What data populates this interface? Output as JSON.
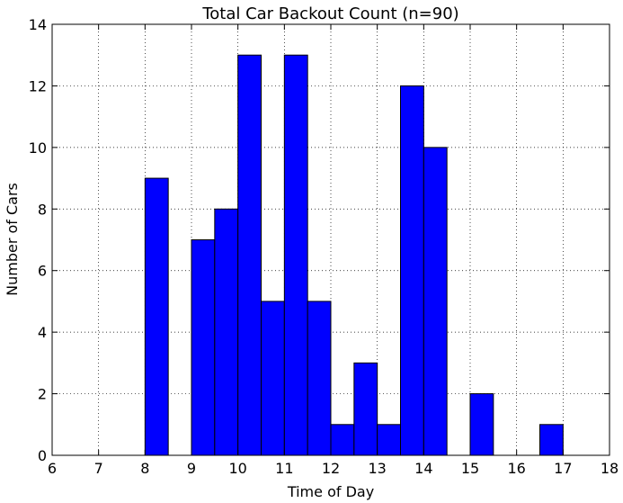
{
  "chart_data": {
    "type": "bar",
    "title": "Total Car Backout Count (n=90)",
    "xlabel": "Time of Day",
    "ylabel": "Number of Cars",
    "xlim": [
      6,
      18
    ],
    "ylim": [
      0,
      14
    ],
    "xticks": [
      6,
      7,
      8,
      9,
      10,
      11,
      12,
      13,
      14,
      15,
      16,
      17,
      18
    ],
    "yticks": [
      0,
      2,
      4,
      6,
      8,
      10,
      12,
      14
    ],
    "grid": true,
    "bin_width": 0.5,
    "color": "#0000ff",
    "bins": [
      {
        "start": 7.0,
        "value": 0
      },
      {
        "start": 7.5,
        "value": 0
      },
      {
        "start": 8.0,
        "value": 9
      },
      {
        "start": 8.5,
        "value": 0
      },
      {
        "start": 9.0,
        "value": 7
      },
      {
        "start": 9.5,
        "value": 8
      },
      {
        "start": 10.0,
        "value": 13
      },
      {
        "start": 10.5,
        "value": 5
      },
      {
        "start": 11.0,
        "value": 13
      },
      {
        "start": 11.5,
        "value": 5
      },
      {
        "start": 12.0,
        "value": 1
      },
      {
        "start": 12.5,
        "value": 3
      },
      {
        "start": 13.0,
        "value": 1
      },
      {
        "start": 13.5,
        "value": 12
      },
      {
        "start": 14.0,
        "value": 10
      },
      {
        "start": 14.5,
        "value": 0
      },
      {
        "start": 15.0,
        "value": 2
      },
      {
        "start": 15.5,
        "value": 0
      },
      {
        "start": 16.0,
        "value": 0
      },
      {
        "start": 16.5,
        "value": 1
      }
    ]
  }
}
